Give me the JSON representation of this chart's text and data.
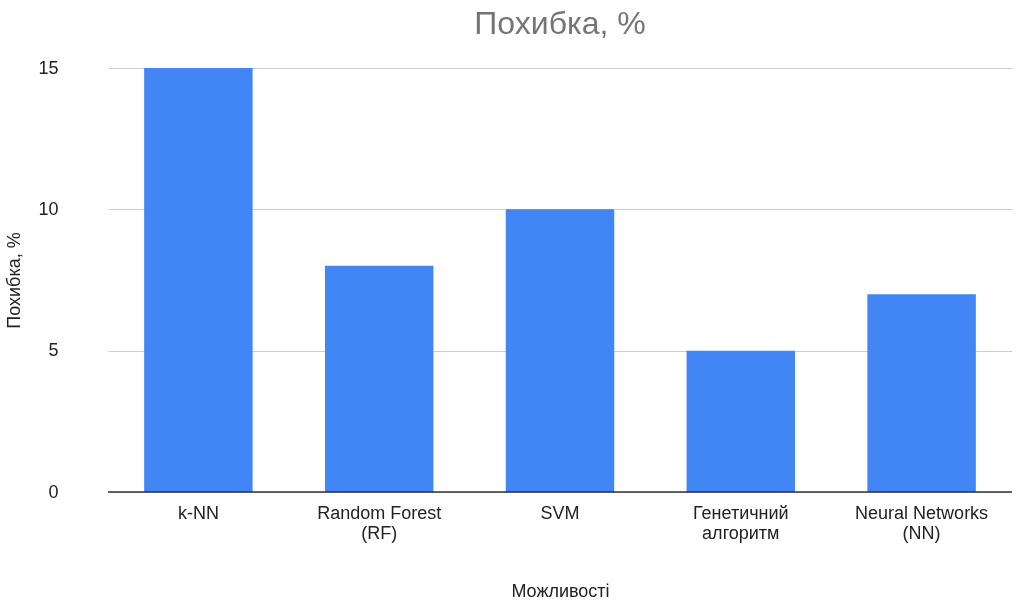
{
  "chart_data": {
    "type": "bar",
    "title": "Похибка, %",
    "xlabel": "Можливості",
    "ylabel": "Похибка, %",
    "categories": [
      "k-NN",
      "Random Forest (RF)",
      "SVM",
      "Генетичний алгоритм",
      "Neural Networks (NN)"
    ],
    "values": [
      15,
      8,
      10,
      5,
      7
    ],
    "color": "#4285f4",
    "ylim": [
      0,
      15
    ],
    "yticks": [
      0,
      5,
      10,
      15
    ],
    "grid": "y"
  }
}
